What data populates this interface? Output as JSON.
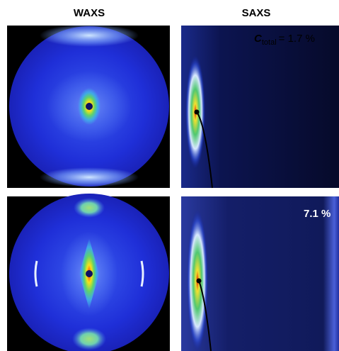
{
  "headers": {
    "waxs": "WAXS",
    "saxs": "SAXS"
  },
  "annotations": {
    "symbol": "C",
    "subscript": "total",
    "top_value": "= 1.7 %",
    "bottom_value": "7.1 %"
  }
}
